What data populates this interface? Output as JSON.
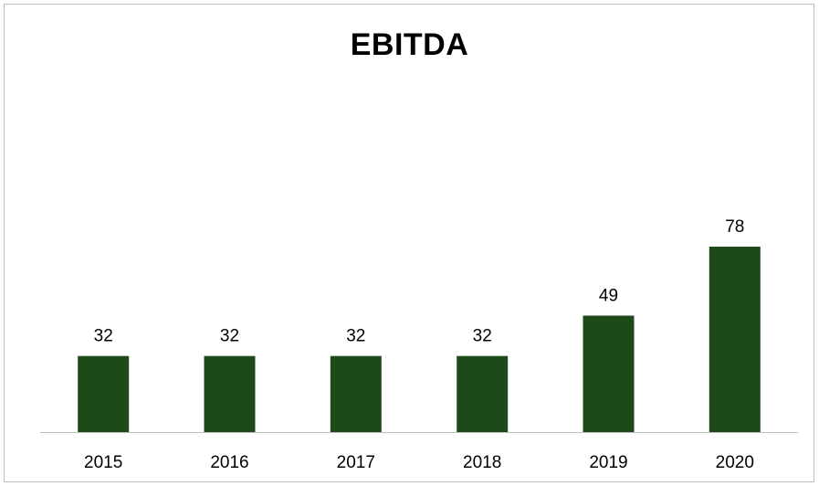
{
  "chart_data": {
    "type": "bar",
    "title": "EBITDA",
    "xlabel": "",
    "ylabel": "",
    "categories": [
      "2015",
      "2016",
      "2017",
      "2018",
      "2019",
      "2020"
    ],
    "values": [
      32,
      32,
      32,
      32,
      49,
      78
    ],
    "data_labels": [
      "32",
      "32",
      "32",
      "32",
      "49",
      "78"
    ],
    "ylim": [
      0,
      80
    ],
    "grid": false,
    "legend": "none",
    "bar_color": "#1e4a1a",
    "axis_color": "#bfbfbf"
  }
}
